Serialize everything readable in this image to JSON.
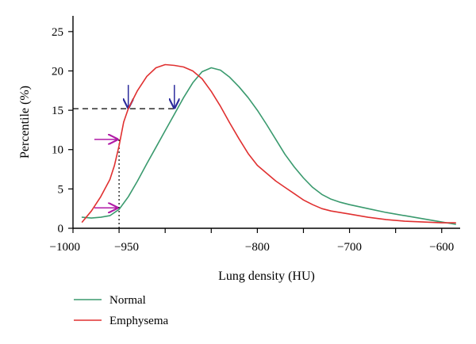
{
  "chart_data": {
    "type": "line",
    "xlabel": "Lung density (HU)",
    "ylabel": "Percentile (%)",
    "xlim": [
      -1000,
      -580
    ],
    "ylim": [
      0,
      27
    ],
    "x_ticks": [
      -1000,
      -950,
      -800,
      -700,
      -600
    ],
    "x_tick_labels": [
      "−1000",
      "−950",
      "−800",
      "−700",
      "−600"
    ],
    "x_minor_ticks": [
      -1000,
      -950,
      -900,
      -850,
      -800,
      -750,
      -700,
      -650,
      -600
    ],
    "y_ticks": [
      0,
      5,
      10,
      15,
      20,
      25
    ],
    "y_tick_labels": [
      "0",
      "5",
      "10",
      "15",
      "20",
      "25"
    ],
    "grid": false,
    "legend_position": "bottom-left",
    "series": [
      {
        "name": "Normal",
        "color": "#3a9a6e",
        "x": [
          -990,
          -980,
          -970,
          -960,
          -950,
          -940,
          -930,
          -920,
          -910,
          -900,
          -890,
          -880,
          -870,
          -860,
          -850,
          -840,
          -830,
          -820,
          -810,
          -800,
          -790,
          -780,
          -770,
          -760,
          -750,
          -740,
          -730,
          -720,
          -710,
          -700,
          -680,
          -660,
          -640,
          -620,
          -600,
          -585
        ],
        "y": [
          1.4,
          1.3,
          1.4,
          1.6,
          2.4,
          4.0,
          6.0,
          8.2,
          10.3,
          12.4,
          14.5,
          16.6,
          18.5,
          19.9,
          20.4,
          20.1,
          19.2,
          18.0,
          16.6,
          15.0,
          13.2,
          11.3,
          9.4,
          7.8,
          6.4,
          5.2,
          4.3,
          3.7,
          3.3,
          3.0,
          2.5,
          2.0,
          1.6,
          1.2,
          0.8,
          0.5
        ]
      },
      {
        "name": "Emphysema",
        "color": "#e03030",
        "x": [
          -990,
          -980,
          -970,
          -960,
          -955,
          -950,
          -945,
          -940,
          -930,
          -920,
          -910,
          -900,
          -890,
          -880,
          -870,
          -860,
          -850,
          -840,
          -830,
          -820,
          -810,
          -800,
          -790,
          -780,
          -770,
          -760,
          -750,
          -740,
          -730,
          -720,
          -700,
          -680,
          -660,
          -640,
          -620,
          -600,
          -585
        ],
        "y": [
          0.8,
          2.2,
          4.0,
          6.2,
          8.0,
          10.5,
          13.5,
          15.2,
          17.5,
          19.3,
          20.4,
          20.8,
          20.7,
          20.5,
          20.0,
          19.0,
          17.4,
          15.5,
          13.4,
          11.4,
          9.5,
          8.0,
          7.0,
          6.0,
          5.2,
          4.4,
          3.6,
          3.0,
          2.5,
          2.2,
          1.8,
          1.4,
          1.1,
          0.9,
          0.8,
          0.7,
          0.7
        ]
      }
    ],
    "annotations": {
      "dashed_hline": {
        "y": 15.2,
        "x_from": -1000,
        "x_to": -890
      },
      "dotted_vline": {
        "x": -950,
        "y_from": 0,
        "y_to": 11.3
      },
      "down_arrows": [
        {
          "x": -940,
          "y": 15.2,
          "color": "#2b2b9c"
        },
        {
          "x": -890,
          "y": 15.2,
          "color": "#2b2b9c"
        }
      ],
      "right_arrows": [
        {
          "x": -951,
          "y": 11.3,
          "color": "#b01aa6"
        },
        {
          "x": -951,
          "y": 2.6,
          "color": "#b01aa6"
        }
      ]
    }
  }
}
